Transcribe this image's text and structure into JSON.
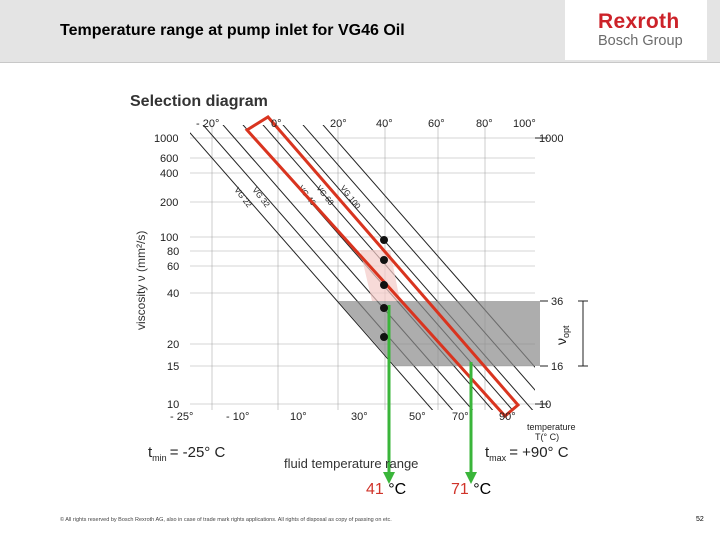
{
  "header": {
    "title": "Temperature range at pump inlet for VG46 Oil",
    "logo_main": "Rexroth",
    "logo_sub": "Bosch Group",
    "background": "#e4e4e4",
    "brand_color": "#cc2229"
  },
  "chart_data": {
    "type": "line",
    "title": "Selection diagram",
    "ylabel": "viscosity ν (mm²/s)",
    "x_top_ticks": [
      "- 20°",
      "0°",
      "20°",
      "40°",
      "60°",
      "80°",
      "100°"
    ],
    "x_bottom_ticks": [
      "- 25°",
      "- 10°",
      "10°",
      "30°",
      "50°",
      "70°",
      "90°"
    ],
    "y_left_ticks": [
      "1000",
      "600",
      "400",
      "200",
      "100",
      "80",
      "60",
      "40",
      "20",
      "15",
      "10"
    ],
    "y_right_ticks": [
      "1000",
      "36",
      "16",
      "10"
    ],
    "axis_x_label": "temperature",
    "axis_x_unit": "T(° C)",
    "bracket_label": "ν",
    "bracket_sub": "opt",
    "tmin_label": "t",
    "tmin_sub": "min",
    "tmin_value": "= -25° C",
    "tmax_label": "t",
    "tmax_sub": "max",
    "tmax_value": "= +90° C",
    "range_label": "fluid temperature range",
    "xlim": [
      -25,
      100
    ],
    "ylim": [
      10,
      1000
    ],
    "y_scale": "log-log",
    "optimal_viscosity_band": [
      16,
      36
    ],
    "series": [
      {
        "name": "VG 22",
        "x": [
          -25,
          25
        ],
        "y": [
          1000,
          10
        ]
      },
      {
        "name": "VG 32",
        "x": [
          -18,
          33
        ],
        "y": [
          1000,
          10
        ]
      },
      {
        "name": "VG 46",
        "x": [
          -10,
          43
        ],
        "y": [
          1000,
          10
        ]
      },
      {
        "name": "VG 68",
        "x": [
          -3,
          52
        ],
        "y": [
          1000,
          10
        ]
      },
      {
        "name": "VG 100",
        "x": [
          5,
          62
        ],
        "y": [
          1000,
          10
        ]
      }
    ],
    "highlight_color": "#d9341f",
    "marker_color": "#3ab53a",
    "markers_at_viscosity": [
      100,
      60,
      40,
      25,
      20
    ],
    "results": [
      {
        "value": "41",
        "unit": "°C"
      },
      {
        "value": "71",
        "unit": "°C"
      }
    ]
  },
  "footer": {
    "text": "© All rights reserved by Bosch Rexroth AG, also in case of trade mark rights applications. All rights of disposal as copy of passing on etc.",
    "page": "52"
  }
}
